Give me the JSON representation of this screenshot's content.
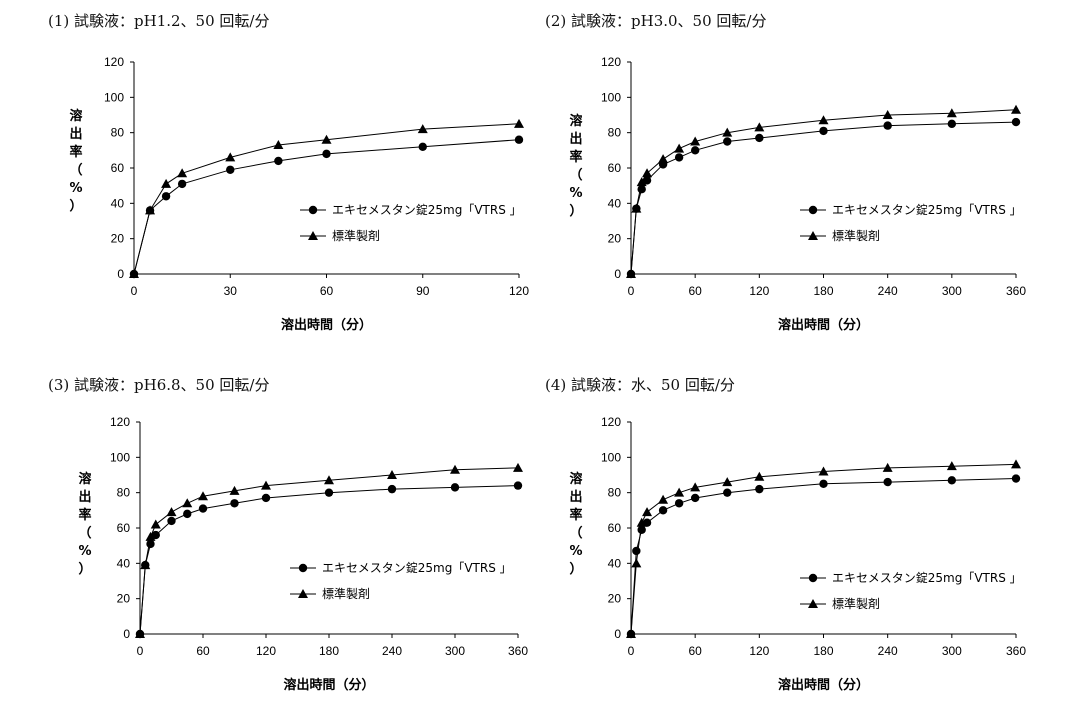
{
  "chart_data": [
    {
      "type": "line",
      "title": "(1) 試験液：pH1.2、50 回転/分",
      "xlabel": "溶出時間（分）",
      "ylabel": "溶出率（%）",
      "ylabel_chars": [
        "溶",
        "出",
        "率",
        "（",
        "%",
        "）"
      ],
      "xlim": [
        0,
        120
      ],
      "ylim": [
        0,
        120
      ],
      "xticks": [
        0,
        30,
        60,
        90,
        120
      ],
      "yticks": [
        0,
        20,
        40,
        60,
        80,
        100,
        120
      ],
      "legend_position": "center-right",
      "series": [
        {
          "name": "エキセメスタン錠25mg「VTRS 」",
          "marker": "circle",
          "x": [
            0,
            5,
            10,
            15,
            30,
            45,
            60,
            90,
            120
          ],
          "y": [
            0,
            36,
            44,
            51,
            59,
            64,
            68,
            72,
            76
          ]
        },
        {
          "name": "標準製剤",
          "marker": "triangle",
          "x": [
            0,
            5,
            10,
            15,
            30,
            45,
            60,
            90,
            120
          ],
          "y": [
            0,
            36,
            51,
            57,
            66,
            73,
            76,
            82,
            85
          ]
        }
      ]
    },
    {
      "type": "line",
      "title": "(2) 試験液：pH3.0、50 回転/分",
      "xlabel": "溶出時間（分）",
      "ylabel": "溶出率（%）",
      "ylabel_chars": [
        "溶",
        "出",
        "率",
        "（",
        "%",
        "）"
      ],
      "xlim": [
        0,
        360
      ],
      "ylim": [
        0,
        120
      ],
      "xticks": [
        0,
        60,
        120,
        180,
        240,
        300,
        360
      ],
      "yticks": [
        0,
        20,
        40,
        60,
        80,
        100,
        120
      ],
      "legend_position": "center-right",
      "series": [
        {
          "name": "エキセメスタン錠25mg「VTRS 」",
          "marker": "circle",
          "x": [
            0,
            5,
            10,
            15,
            30,
            45,
            60,
            90,
            120,
            180,
            240,
            300,
            360
          ],
          "y": [
            0,
            37,
            48,
            53,
            62,
            66,
            70,
            75,
            77,
            81,
            84,
            85,
            86
          ]
        },
        {
          "name": "標準製剤",
          "marker": "triangle",
          "x": [
            0,
            5,
            10,
            15,
            30,
            45,
            60,
            90,
            120,
            180,
            240,
            300,
            360
          ],
          "y": [
            0,
            37,
            52,
            57,
            65,
            71,
            75,
            80,
            83,
            87,
            90,
            91,
            93
          ]
        }
      ]
    },
    {
      "type": "line",
      "title": "(3) 試験液：pH6.8、50 回転/分",
      "xlabel": "溶出時間（分）",
      "ylabel": "溶出率（%）",
      "ylabel_chars": [
        "溶",
        "出",
        "率",
        "（",
        "%",
        "）"
      ],
      "xlim": [
        0,
        360
      ],
      "ylim": [
        0,
        120
      ],
      "xticks": [
        0,
        60,
        120,
        180,
        240,
        300,
        360
      ],
      "yticks": [
        0,
        20,
        40,
        60,
        80,
        100,
        120
      ],
      "legend_position": "bottom-right",
      "series": [
        {
          "name": "エキセメスタン錠25mg「VTRS 」",
          "marker": "circle",
          "x": [
            0,
            5,
            10,
            15,
            30,
            45,
            60,
            90,
            120,
            180,
            240,
            300,
            360
          ],
          "y": [
            0,
            39,
            51,
            56,
            64,
            68,
            71,
            74,
            77,
            80,
            82,
            83,
            84
          ]
        },
        {
          "name": "標準製剤",
          "marker": "triangle",
          "x": [
            0,
            5,
            10,
            15,
            30,
            45,
            60,
            90,
            120,
            180,
            240,
            300,
            360
          ],
          "y": [
            0,
            39,
            55,
            62,
            69,
            74,
            78,
            81,
            84,
            87,
            90,
            93,
            94
          ]
        }
      ]
    },
    {
      "type": "line",
      "title": "(4) 試験液：水、50 回転/分",
      "xlabel": "溶出時間（分）",
      "ylabel": "溶出率（%）",
      "ylabel_chars": [
        "溶",
        "出",
        "率",
        "（",
        "%",
        "）"
      ],
      "xlim": [
        0,
        360
      ],
      "ylim": [
        0,
        120
      ],
      "xticks": [
        0,
        60,
        120,
        180,
        240,
        300,
        360
      ],
      "yticks": [
        0,
        20,
        40,
        60,
        80,
        100,
        120
      ],
      "legend_position": "bottom-right",
      "series": [
        {
          "name": "エキセメスタン錠25mg「VTRS 」",
          "marker": "circle",
          "x": [
            0,
            5,
            10,
            15,
            30,
            45,
            60,
            90,
            120,
            180,
            240,
            300,
            360
          ],
          "y": [
            0,
            47,
            59,
            63,
            70,
            74,
            77,
            80,
            82,
            85,
            86,
            87,
            88
          ]
        },
        {
          "name": "標準製剤",
          "marker": "triangle",
          "x": [
            0,
            5,
            10,
            15,
            30,
            45,
            60,
            90,
            120,
            180,
            240,
            300,
            360
          ],
          "y": [
            0,
            40,
            63,
            69,
            76,
            80,
            83,
            86,
            89,
            92,
            94,
            95,
            96
          ]
        }
      ]
    }
  ]
}
